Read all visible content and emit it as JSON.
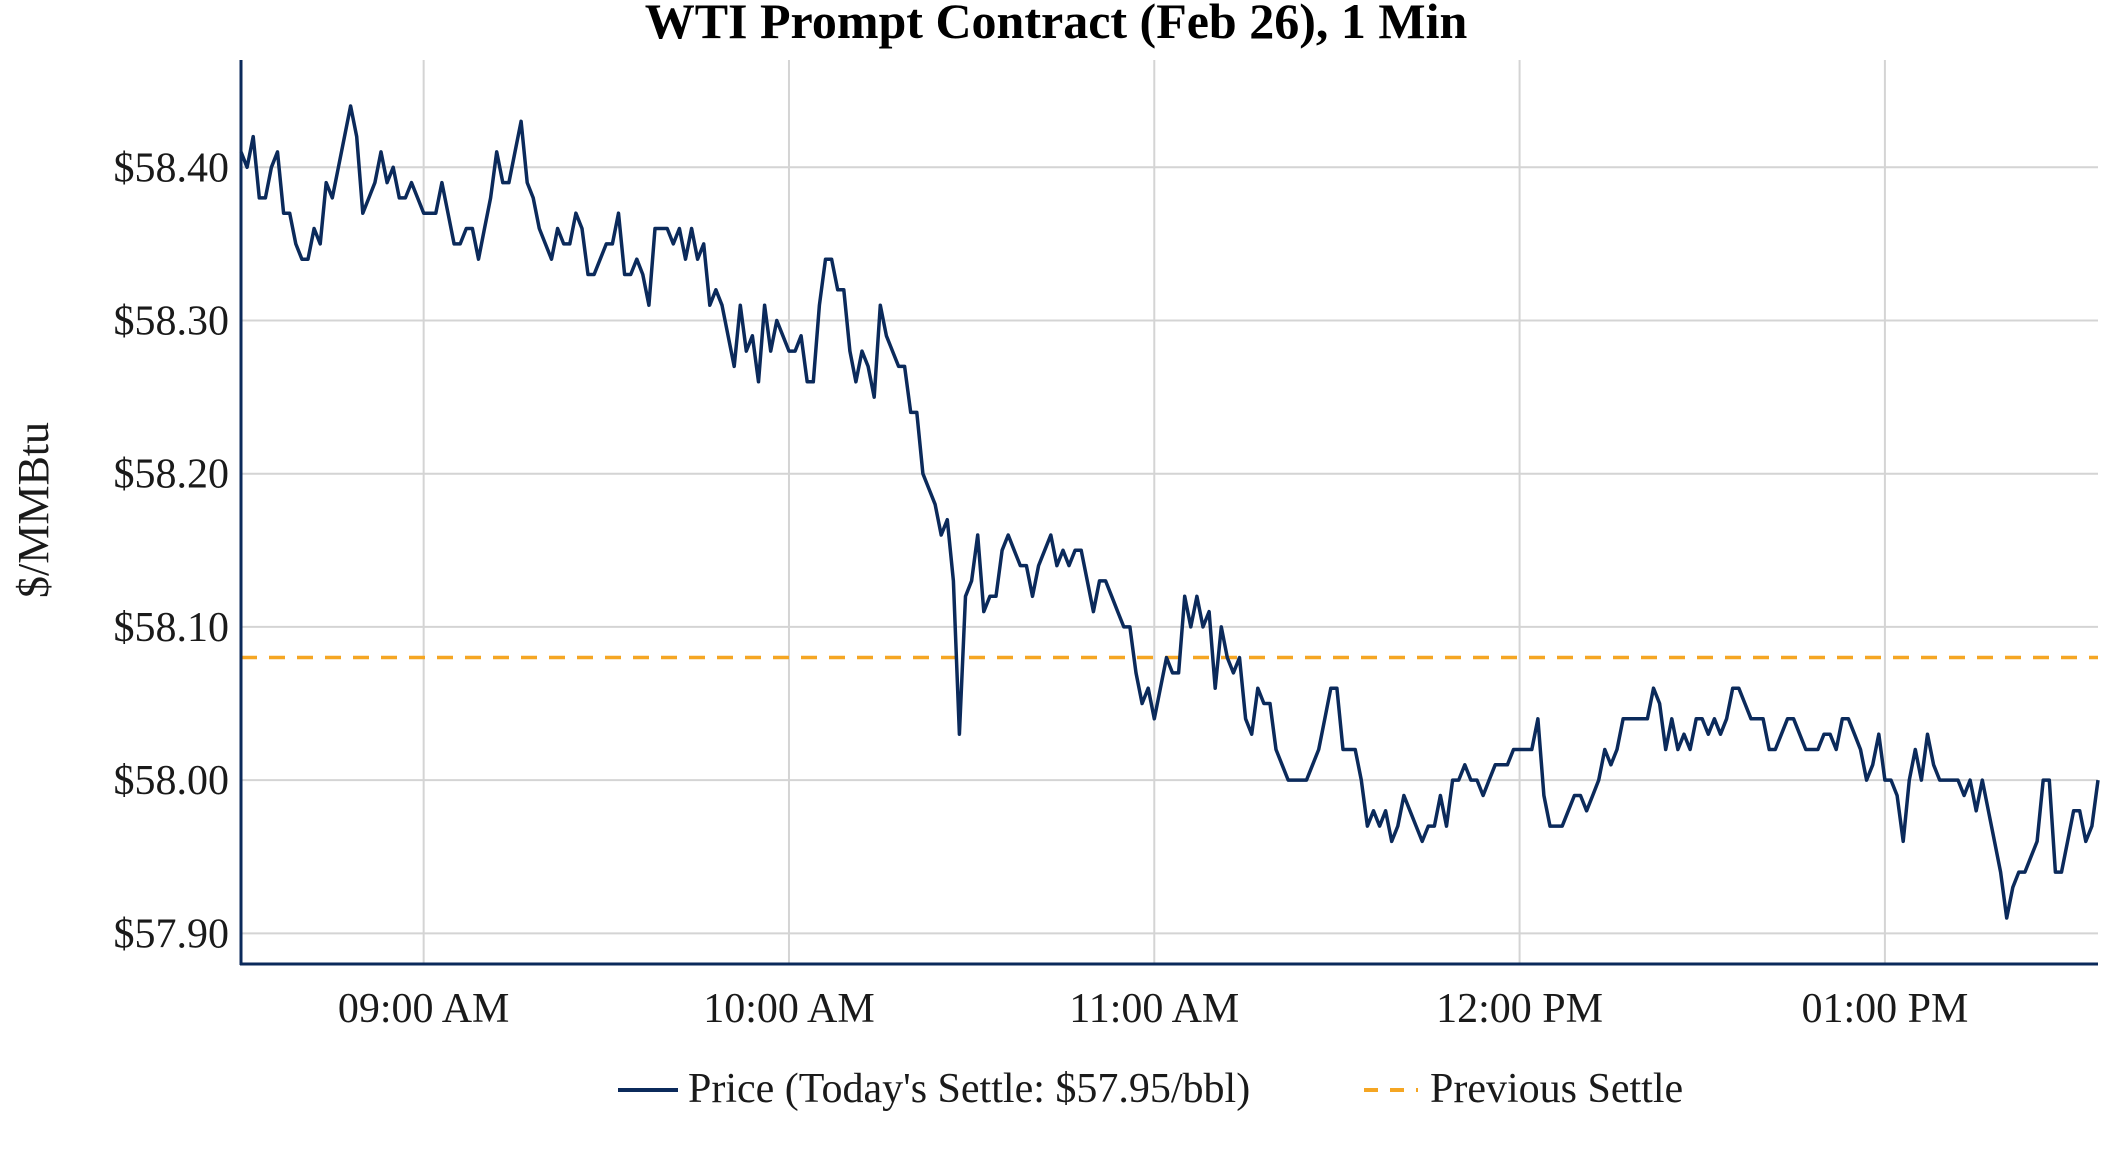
{
  "chart_data": {
    "type": "line",
    "title": "WTI Prompt Contract (Feb 26), 1 Min",
    "xlabel": "",
    "ylabel": "$/MMBtu",
    "x_start": "08:30 AM",
    "x_end": "01:35 PM",
    "x_ticks": [
      "09:00 AM",
      "10:00 AM",
      "11:00 AM",
      "12:00 PM",
      "01:00 PM"
    ],
    "ylim": [
      57.88,
      58.47
    ],
    "y_ticks": [
      57.9,
      58.0,
      58.1,
      58.2,
      58.3,
      58.4
    ],
    "y_tick_labels": [
      "$57.90",
      "$58.00",
      "$58.10",
      "$58.20",
      "$58.30",
      "$58.40"
    ],
    "grid": true,
    "legend_position": "bottom",
    "series": [
      {
        "name": "Price (Today's Settle: $57.95/bbl)",
        "color": "#0b2a5b",
        "style": "solid",
        "x_minutes_from_0830": [
          0,
          1,
          2,
          3,
          4,
          5,
          6,
          7,
          8,
          9,
          10,
          11,
          12,
          13,
          14,
          15,
          16,
          17,
          18,
          19,
          20,
          21,
          22,
          23,
          24,
          25,
          26,
          27,
          28,
          29,
          30,
          31,
          32,
          33,
          34,
          35,
          36,
          37,
          38,
          39,
          40,
          41,
          42,
          43,
          44,
          45,
          46,
          47,
          48,
          49,
          50,
          51,
          52,
          53,
          54,
          55,
          56,
          57,
          58,
          59,
          60,
          61,
          62,
          63,
          64,
          65,
          66,
          67,
          68,
          69,
          70,
          71,
          72,
          73,
          74,
          75,
          76,
          77,
          78,
          79,
          80,
          81,
          82,
          83,
          84,
          85,
          86,
          87,
          88,
          89,
          90,
          91,
          92,
          93,
          94,
          95,
          96,
          97,
          98,
          99,
          100,
          101,
          102,
          103,
          104,
          105,
          106,
          107,
          108,
          109,
          110,
          111,
          112,
          113,
          114,
          115,
          116,
          117,
          118,
          119,
          120,
          121,
          122,
          123,
          124,
          125,
          126,
          127,
          128,
          129,
          130,
          131,
          132,
          133,
          134,
          135,
          136,
          137,
          138,
          139,
          140,
          141,
          142,
          143,
          144,
          145,
          146,
          147,
          148,
          149,
          150,
          151,
          152,
          153,
          154,
          155,
          156,
          157,
          158,
          159,
          160,
          161,
          162,
          163,
          164,
          165,
          166,
          167,
          168,
          169,
          170,
          171,
          172,
          173,
          174,
          175,
          176,
          177,
          178,
          179,
          180,
          181,
          182,
          183,
          184,
          185,
          186,
          187,
          188,
          189,
          190,
          191,
          192,
          193,
          194,
          195,
          196,
          197,
          198,
          199,
          200,
          201,
          202,
          203,
          204,
          205,
          206,
          207,
          208,
          209,
          210,
          211,
          212,
          213,
          214,
          215,
          216,
          217,
          218,
          219,
          220,
          221,
          222,
          223,
          224,
          225,
          226,
          227,
          228,
          229,
          230,
          231,
          232,
          233,
          234,
          235,
          236,
          237,
          238,
          239,
          240,
          241,
          242,
          243,
          244,
          245,
          246,
          247,
          248,
          249,
          250,
          251,
          252,
          253,
          254,
          255,
          256,
          257,
          258,
          259,
          260,
          261,
          262,
          263,
          264,
          265,
          266,
          267,
          268,
          269,
          270,
          271,
          272,
          273,
          274,
          275,
          276,
          277,
          278,
          279,
          280,
          281,
          282,
          283,
          284,
          285,
          286,
          287,
          288,
          289,
          290,
          291,
          292,
          293,
          294,
          295,
          296,
          297,
          298,
          299,
          300,
          301,
          302,
          303,
          304,
          305
        ],
        "values": [
          58.41,
          58.4,
          58.42,
          58.38,
          58.38,
          58.4,
          58.41,
          58.37,
          58.37,
          58.35,
          58.34,
          58.34,
          58.36,
          58.35,
          58.39,
          58.38,
          58.4,
          58.42,
          58.44,
          58.42,
          58.37,
          58.38,
          58.39,
          58.41,
          58.39,
          58.4,
          58.38,
          58.38,
          58.39,
          58.38,
          58.37,
          58.37,
          58.37,
          58.39,
          58.37,
          58.35,
          58.35,
          58.36,
          58.36,
          58.34,
          58.36,
          58.38,
          58.41,
          58.39,
          58.39,
          58.41,
          58.43,
          58.39,
          58.38,
          58.36,
          58.35,
          58.34,
          58.36,
          58.35,
          58.35,
          58.37,
          58.36,
          58.33,
          58.33,
          58.34,
          58.35,
          58.35,
          58.37,
          58.33,
          58.33,
          58.34,
          58.33,
          58.31,
          58.36,
          58.36,
          58.36,
          58.35,
          58.36,
          58.34,
          58.36,
          58.34,
          58.35,
          58.31,
          58.32,
          58.31,
          58.29,
          58.27,
          58.31,
          58.28,
          58.29,
          58.26,
          58.31,
          58.28,
          58.3,
          58.29,
          58.28,
          58.28,
          58.29,
          58.26,
          58.26,
          58.31,
          58.34,
          58.34,
          58.32,
          58.32,
          58.28,
          58.26,
          58.28,
          58.27,
          58.25,
          58.31,
          58.29,
          58.28,
          58.27,
          58.27,
          58.24,
          58.24,
          58.2,
          58.19,
          58.18,
          58.16,
          58.17,
          58.13,
          58.03,
          58.12,
          58.13,
          58.16,
          58.11,
          58.12,
          58.12,
          58.15,
          58.16,
          58.15,
          58.14,
          58.14,
          58.12,
          58.14,
          58.15,
          58.16,
          58.14,
          58.15,
          58.14,
          58.15,
          58.15,
          58.13,
          58.11,
          58.13,
          58.13,
          58.12,
          58.11,
          58.1,
          58.1,
          58.07,
          58.05,
          58.06,
          58.04,
          58.06,
          58.08,
          58.07,
          58.07,
          58.12,
          58.1,
          58.12,
          58.1,
          58.11,
          58.06,
          58.1,
          58.08,
          58.07,
          58.08,
          58.04,
          58.03,
          58.06,
          58.05,
          58.05,
          58.02,
          58.01,
          58.0,
          58.0,
          58.0,
          58.0,
          58.01,
          58.02,
          58.04,
          58.06,
          58.06,
          58.02,
          58.02,
          58.02,
          58.0,
          57.97,
          57.98,
          57.97,
          57.98,
          57.96,
          57.97,
          57.99,
          57.98,
          57.97,
          57.96,
          57.97,
          57.97,
          57.99,
          57.97,
          58.0,
          58.0,
          58.01,
          58.0,
          58.0,
          57.99,
          58.0,
          58.01,
          58.01,
          58.01,
          58.02,
          58.02,
          58.02,
          58.02,
          58.04,
          57.99,
          57.97,
          57.97,
          57.97,
          57.98,
          57.99,
          57.99,
          57.98,
          57.99,
          58.0,
          58.02,
          58.01,
          58.02,
          58.04,
          58.04,
          58.04,
          58.04,
          58.04,
          58.06,
          58.05,
          58.02,
          58.04,
          58.02,
          58.03,
          58.02,
          58.04,
          58.04,
          58.03,
          58.04,
          58.03,
          58.04,
          58.06,
          58.06,
          58.05,
          58.04,
          58.04,
          58.04,
          58.02,
          58.02,
          58.03,
          58.04,
          58.04,
          58.03,
          58.02,
          58.02,
          58.02,
          58.03,
          58.03,
          58.02,
          58.04,
          58.04,
          58.03,
          58.02,
          58.0,
          58.01,
          58.03,
          58.0,
          58.0,
          57.99,
          57.96,
          58.0,
          58.02,
          58.0,
          58.03,
          58.01,
          58.0,
          58.0,
          58.0,
          58.0,
          57.99,
          58.0,
          57.98,
          58.0,
          57.98,
          57.96,
          57.94,
          57.91,
          57.93,
          57.94,
          57.94,
          57.95,
          57.96,
          58.0,
          58.0,
          57.94,
          57.94,
          57.96,
          57.98,
          57.98,
          57.96,
          57.97,
          58.0
        ]
      },
      {
        "name": "Previous Settle",
        "color": "#f5a623",
        "style": "dashed",
        "constant_value": 58.08
      }
    ]
  }
}
